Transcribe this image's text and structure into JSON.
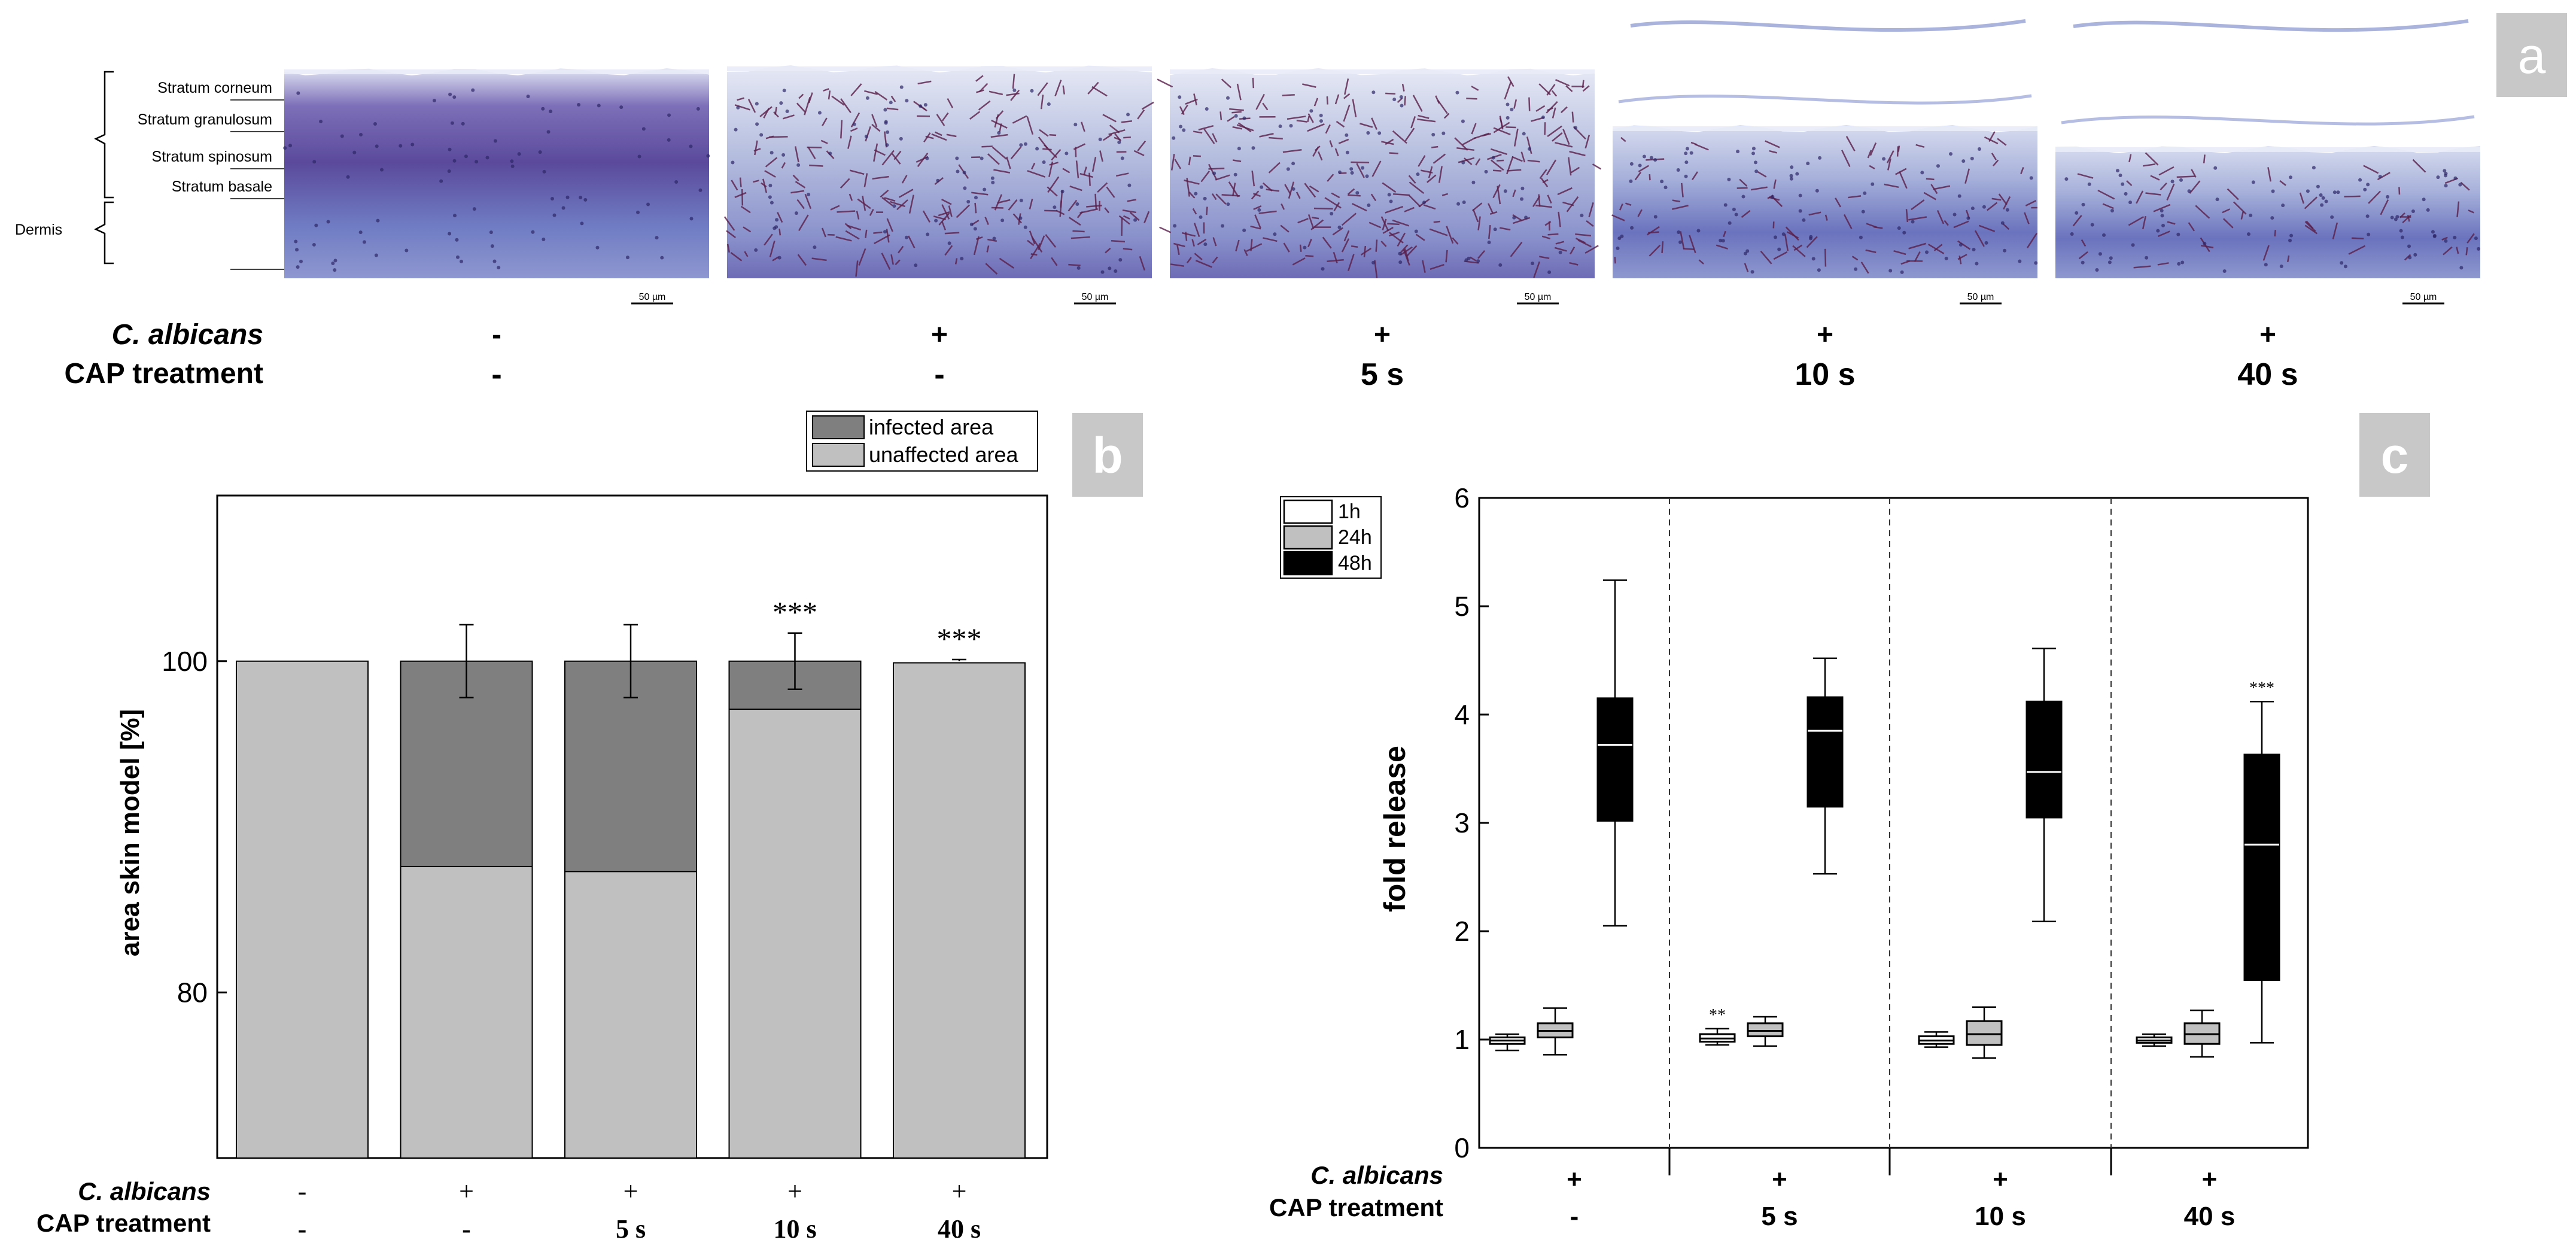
{
  "panel_labels": {
    "a": "a",
    "b": "b",
    "c": "c"
  },
  "histology": {
    "layers": [
      "Stratum corneum",
      "Stratum granulosum",
      "Stratum spinosum",
      "Stratum basale"
    ],
    "dermis": "Dermis",
    "scale_bar": "50 µm",
    "row_labels": {
      "albicans": "C. albicans",
      "cap": "CAP treatment"
    },
    "albicans": [
      "-",
      "+",
      "+",
      "+",
      "+"
    ],
    "cap": [
      "-",
      "-",
      "5 s",
      "10 s",
      "40 s"
    ],
    "colors": {
      "stain_dark": "#5b4a9c",
      "stain_light": "#a9b3dc",
      "fungal": "#5a1f4a"
    }
  },
  "chart_data": [
    {
      "panel": "b",
      "type": "bar",
      "stacked": true,
      "ylabel": "area skin model [%]",
      "ylim": [
        70,
        110
      ],
      "yticks": [
        80,
        100
      ],
      "legend": [
        "infected area",
        "unaffected area"
      ],
      "legend_position": "top-right outside",
      "colors": {
        "infected": "#7f7f7f",
        "unaffected": "#c0c0c0"
      },
      "group_rows": {
        "albicans": "C. albicans",
        "cap": "CAP treatment"
      },
      "groups": [
        {
          "albicans": "-",
          "cap": "-",
          "unaffected": 100,
          "infected": 0,
          "err": 0,
          "sig": ""
        },
        {
          "albicans": "+",
          "cap": "-",
          "unaffected": 87.6,
          "infected": 12.4,
          "err": 2.2,
          "sig": ""
        },
        {
          "albicans": "+",
          "cap": "5 s",
          "unaffected": 87.3,
          "infected": 12.7,
          "err": 2.2,
          "sig": ""
        },
        {
          "albicans": "+",
          "cap": "10 s",
          "unaffected": 97.1,
          "infected": 2.9,
          "err": 1.7,
          "sig": "***"
        },
        {
          "albicans": "+",
          "cap": "40 s",
          "unaffected": 99.9,
          "infected": 0.1,
          "err": 0.1,
          "sig": "***"
        }
      ]
    },
    {
      "panel": "c",
      "type": "boxplot",
      "ylabel": "fold release",
      "ylim": [
        0,
        6
      ],
      "yticks": [
        0,
        1,
        2,
        3,
        4,
        5,
        6
      ],
      "legend": [
        "1h",
        "24h",
        "48h"
      ],
      "legend_position": "top-left",
      "colors": {
        "1h": "#ffffff",
        "24h": "#c0c0c0",
        "48h": "#000000"
      },
      "group_rows": {
        "albicans": "C. albicans",
        "cap": "CAP treatment"
      },
      "groups": [
        {
          "albicans": "+",
          "cap": "-",
          "boxes": [
            {
              "series": "1h",
              "min": 0.9,
              "q1": 0.96,
              "median": 0.99,
              "q3": 1.02,
              "max": 1.05,
              "sig": ""
            },
            {
              "series": "24h",
              "min": 0.86,
              "q1": 1.02,
              "median": 1.08,
              "q3": 1.15,
              "max": 1.29,
              "sig": ""
            },
            {
              "series": "48h",
              "min": 2.05,
              "q1": 3.02,
              "median": 3.72,
              "q3": 4.15,
              "max": 5.24,
              "sig": ""
            }
          ]
        },
        {
          "albicans": "+",
          "cap": "5 s",
          "boxes": [
            {
              "series": "1h",
              "min": 0.95,
              "q1": 0.98,
              "median": 1.01,
              "q3": 1.05,
              "max": 1.1,
              "sig": "**"
            },
            {
              "series": "24h",
              "min": 0.94,
              "q1": 1.03,
              "median": 1.08,
              "q3": 1.15,
              "max": 1.21,
              "sig": ""
            },
            {
              "series": "48h",
              "min": 2.53,
              "q1": 3.15,
              "median": 3.85,
              "q3": 4.16,
              "max": 4.52,
              "sig": ""
            }
          ]
        },
        {
          "albicans": "+",
          "cap": "10 s",
          "boxes": [
            {
              "series": "1h",
              "min": 0.93,
              "q1": 0.96,
              "median": 0.99,
              "q3": 1.03,
              "max": 1.07,
              "sig": ""
            },
            {
              "series": "24h",
              "min": 0.83,
              "q1": 0.95,
              "median": 1.05,
              "q3": 1.17,
              "max": 1.3,
              "sig": ""
            },
            {
              "series": "48h",
              "min": 2.09,
              "q1": 3.05,
              "median": 3.47,
              "q3": 4.12,
              "max": 4.61,
              "sig": ""
            }
          ]
        },
        {
          "albicans": "+",
          "cap": "40 s",
          "boxes": [
            {
              "series": "1h",
              "min": 0.94,
              "q1": 0.97,
              "median": 0.99,
              "q3": 1.02,
              "max": 1.05,
              "sig": ""
            },
            {
              "series": "24h",
              "min": 0.84,
              "q1": 0.96,
              "median": 1.05,
              "q3": 1.15,
              "max": 1.27,
              "sig": ""
            },
            {
              "series": "48h",
              "min": 0.97,
              "q1": 1.55,
              "median": 2.8,
              "q3": 3.63,
              "max": 4.12,
              "sig": "***"
            }
          ]
        }
      ]
    }
  ]
}
